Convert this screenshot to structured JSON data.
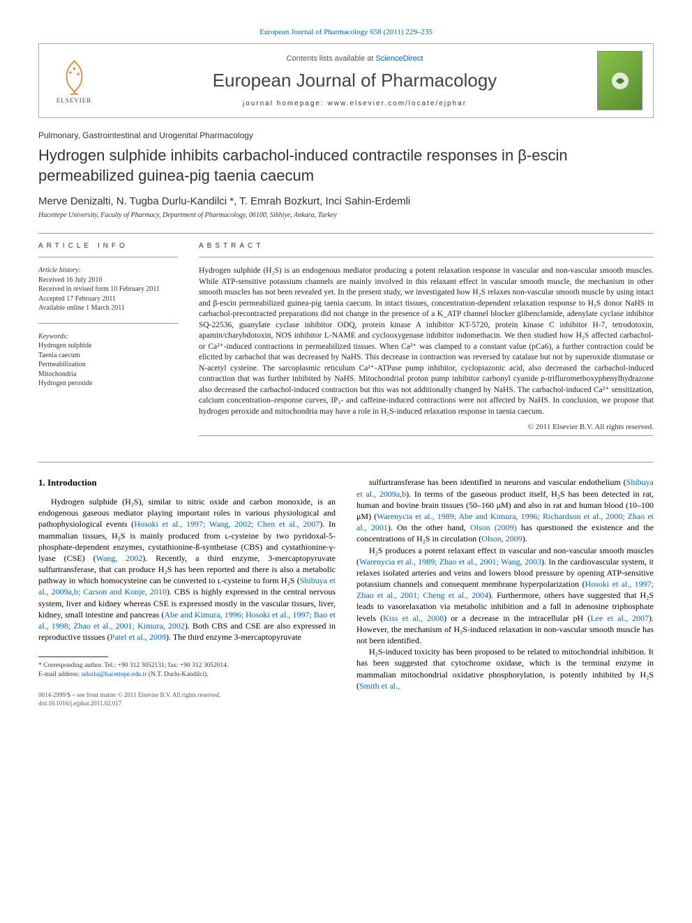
{
  "top_link": {
    "prefix": "",
    "journal": "European Journal of Pharmacology",
    "citation": " 658 (2011) 229–235"
  },
  "header": {
    "sciencedirect_prefix": "Contents lists available at ",
    "sciencedirect_link": "ScienceDirect",
    "journal_name": "European Journal of Pharmacology",
    "homepage_label": "journal homepage: www.elsevier.com/locate/ejphar",
    "elsevier_text": "ELSEVIER"
  },
  "section_label": "Pulmonary, Gastrointestinal and Urogenital Pharmacology",
  "title": "Hydrogen sulphide inhibits carbachol-induced contractile responses in β-escin permeabilized guinea-pig taenia caecum",
  "authors_html": "Merve Denizalti, N. Tugba Durlu-Kandilci *, T. Emrah Bozkurt, Inci Sahin-Erdemli",
  "affiliation": "Hacettepe University, Faculty of Pharmacy, Department of Pharmacology, 06100, Sihhiye, Ankara, Turkey",
  "info": {
    "heading": "ARTICLE INFO",
    "history_label": "Article history:",
    "history": [
      "Received 16 July 2010",
      "Received in revised form 10 February 2011",
      "Accepted 17 February 2011",
      "Available online 1 March 2011"
    ],
    "keywords_label": "Keywords:",
    "keywords": [
      "Hydrogen sulphide",
      "Taenia caecum",
      "Permeabilization",
      "Mitochondria",
      "Hydrogen peroxide"
    ]
  },
  "abstract_heading": "ABSTRACT",
  "abstract_text": "Hydrogen sulphide (H₂S) is an endogenous mediator producing a potent relaxation response in vascular and non-vascular smooth muscles. While ATP-sensitive potassium channels are mainly involved in this relaxant effect in vascular smooth muscle, the mechanism in other smooth muscles has not been revealed yet. In the present study, we investigated how H₂S relaxes non-vascular smooth muscle by using intact and β-escin permeabilized guinea-pig taenia caecum. In intact tissues, concentration-dependent relaxation response to H₂S donor NaHS in carbachol-precontracted preparations did not change in the presence of a K_ATP channel blocker glibenclamide, adenylate cyclase inhibitor SQ-22536, guanylate cyclase inhibitor ODQ, protein kinase A inhibitor KT-5720, protein kinase C inhibitor H-7, tetrodotoxin, apamin/charybdotoxin, NOS inhibitor L-NAME and cyclooxygenase inhibitor indomethacin. We then studied how H₂S affected carbachol- or Ca²⁺-induced contractions in permeabilized tissues. When Ca²⁺ was clamped to a constant value (pCa6), a further contraction could be elicited by carbachol that was decreased by NaHS. This decrease in contraction was reversed by catalase but not by superoxide dismutase or N-acetyl cysteine. The sarcoplasmic reticulum Ca²⁺-ATPase pump inhibitor, cyclopiazonic acid, also decreased the carbachol-induced contraction that was further inhibited by NaHS. Mitochondrial proton pump inhibitor carbonyl cyanide p-trifluromethoxyphenylhydrazone also decreased the carbachol-induced contraction but this was not additionally changed by NaHS. The carbachol-induced Ca²⁺ sensitization, calcium concentration–response curves, IP₃- and caffeine-induced contractions were not affected by NaHS. In conclusion, we propose that hydrogen peroxide and mitochondria may have a role in H₂S-induced relaxation response in taenia caecum.",
  "copyright": "© 2011 Elsevier B.V. All rights reserved.",
  "intro_heading": "1. Introduction",
  "intro_left": "Hydrogen sulphide (H₂S), similar to nitric oxide and carbon monoxide, is an endogenous gaseous mediator playing important roles in various physiological and pathophysiological events (|Hosoki et al., 1997; Wang, 2002; Chen et al., 2007|). In mammalian tissues, H₂S is mainly produced from ʟ-cysteine by two pyridoxal-5-phosphate-dependent enzymes, cystathionine-ß-synthetase (CBS) and cystathionine-γ-lyase (CSE) (|Wang, 2002|). Recently, a third enzyme, 3-mercaptopyruvate sulfurtransferase, that can produce H₂S has been reported and there is also a metabolic pathway in which homocysteine can be converted to ʟ-cysteine to form H₂S (|Shibuya et al., 2009a,b; Carson and Konje, 2010|). CBS is highly expressed in the central nervous system, liver and kidney whereas CSE is expressed mostly in the vascular tissues, liver, kidney, small intestine and pancreas (|Abe and Kimura, 1996; Hosoki et al., 1997; Bao et al., 1998; Zhao et al., 2001; Kimura, 2002|). Both CBS and CSE are also expressed in reproductive tissues (|Patel et al., 2009|). The third enzyme 3-mercaptopyruvate",
  "intro_right_p1": "sulfurtransferase has been identified in neurons and vascular endothelium (|Shibuya et al., 2009a,b|). In terms of the gaseous product itself, H₂S has been detected in rat, human and bovine brain tissues (50–160 μM) and also in rat and human blood (10–100 μM) (|Warenycia et al., 1989; Abe and Kimura, 1996; Richardson et al., 2000; Zhao et al., 2001|). On the other hand, |Olson (2009)| has questioned the existence and the concentrations of H₂S in circulation (|Olson, 2009|).",
  "intro_right_p2": "H₂S produces a potent relaxant effect in vascular and non-vascular smooth muscles (|Warenycia et al., 1989; Zhao et al., 2001; Wang, 2003|). In the cardiovascular system, it relaxes isolated arteries and veins and lowers blood pressure by opening ATP-sensitive potassium channels and consequent membrane hyperpolarization (|Hosoki et al., 1997; Zhao et al., 2001; Cheng et al., 2004|). Furthermore, others have suggested that H₂S leads to vasorelaxation via metabolic inhibition and a fall in adenosine triphosphate levels (|Kiss et al., 2008|) or a decrease in the intracellular pH (|Lee et al., 2007|). However, the mechanism of H₂S-induced relaxation in non-vascular smooth muscle has not been identified.",
  "intro_right_p3": "H₂S-induced toxicity has been proposed to be related to mitochondrial inhibition. It has been suggested that cytochrome oxidase, which is the terminal enzyme in mammalian mitochondrial oxidative phosphorylation, is potently inhibited by H₂S (|Smith et al.,",
  "corresponding": {
    "line1": "* Corresponding author. Tel.: +90 312 3052131; fax: +90 312 3052014.",
    "line2_label": "E-mail address: ",
    "email": "ndurlu@hacettepe.edu.tr",
    "line2_suffix": " (N.T. Durlu-Kandilci)."
  },
  "bottom": {
    "line1": "0014-2999/$ – see front matter © 2011 Elsevier B.V. All rights reserved.",
    "line2": "doi:10.1016/j.ejphar.2011.02.017"
  },
  "colors": {
    "link": "#0066cc",
    "text": "#222222",
    "border": "#999999"
  }
}
